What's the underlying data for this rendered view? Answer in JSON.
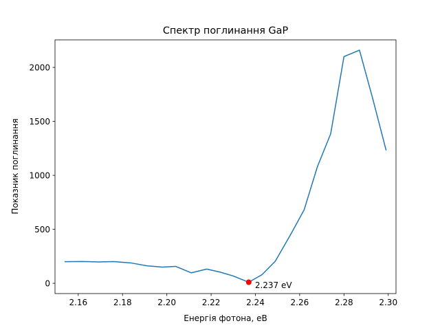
{
  "chart_data": {
    "type": "line",
    "title": "Спектр поглинання GaP",
    "xlabel": "Енергія фотона, еВ",
    "ylabel": "Показник поглинання",
    "xlim": [
      2.1495,
      2.3035
    ],
    "ylim": [
      -95,
      2255
    ],
    "xticks": [
      2.16,
      2.18,
      2.2,
      2.22,
      2.24,
      2.26,
      2.28,
      2.3
    ],
    "xtick_labels": [
      "2.16",
      "2.18",
      "2.20",
      "2.22",
      "2.24",
      "2.26",
      "2.28",
      "2.30"
    ],
    "yticks": [
      0,
      500,
      1000,
      1500,
      2000
    ],
    "ytick_labels": [
      "0",
      "500",
      "1000",
      "1500",
      "2000"
    ],
    "grid": false,
    "series": [
      {
        "color": "#1f77b4",
        "x": [
          2.154,
          2.162,
          2.169,
          2.176,
          2.184,
          2.191,
          2.198,
          2.204,
          2.211,
          2.218,
          2.224,
          2.23,
          2.237,
          2.243,
          2.249,
          2.256,
          2.262,
          2.268,
          2.274,
          2.28,
          2.287,
          2.293,
          2.299
        ],
        "y": [
          200,
          202,
          198,
          201,
          188,
          162,
          150,
          157,
          97,
          132,
          104,
          68,
          10,
          80,
          205,
          455,
          680,
          1080,
          1385,
          2100,
          2160,
          1710,
          1235
        ]
      }
    ],
    "marker": {
      "x": 2.237,
      "y": 10,
      "color": "#ff0000"
    },
    "annotation": {
      "text": "2.237 eV",
      "x": 2.237,
      "y": 10
    }
  }
}
